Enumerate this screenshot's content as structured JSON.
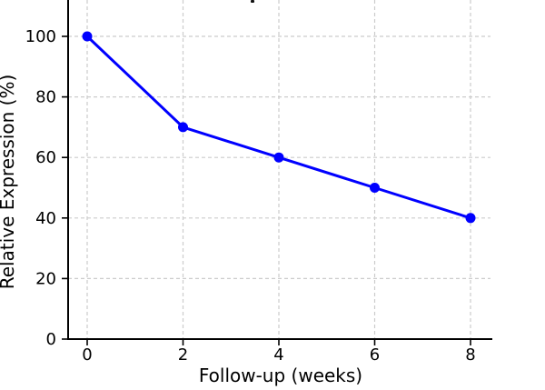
{
  "chart_data": {
    "type": "line",
    "x": [
      0,
      2,
      4,
      6,
      8
    ],
    "y": [
      100,
      70,
      60,
      50,
      40
    ],
    "xlabel": "Follow-up (weeks)",
    "ylabel": "Relative Expression (%)",
    "xtick_values": [
      0,
      2,
      4,
      6,
      8
    ],
    "ytick_values": [
      0,
      20,
      40,
      60,
      80,
      100
    ],
    "xlim": [
      -0.4,
      8.45
    ],
    "ylim": [
      0,
      112
    ],
    "grid": true,
    "grid_style": "dashed",
    "legend_position": "none",
    "line_color": "#0000ff",
    "marker": "circle",
    "marker_color": "#0000ff"
  },
  "style": {
    "grid_color": "#cccccc",
    "axis_color": "#000000",
    "text_color": "#000000",
    "background": "#ffffff"
  }
}
